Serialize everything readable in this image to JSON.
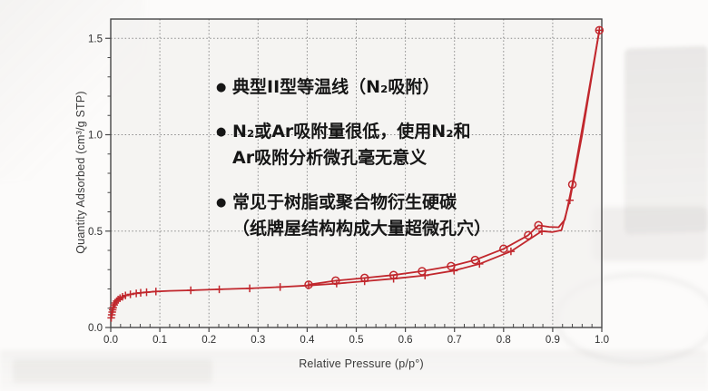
{
  "colors": {
    "accent_red": "#c1272d",
    "grid": "#8b8b8b",
    "axis": "#474747",
    "tick_text": "#2f2f2f",
    "plot_bg": "#f1f0ee"
  },
  "chart": {
    "xlabel": "Relative Pressure (p/p°)",
    "ylabel": "Quantity Adsorbed (cm³/g STP)"
  },
  "chart_data": {
    "type": "line",
    "title": "",
    "xlabel": "Relative Pressure (p/p°)",
    "ylabel": "Quantity Adsorbed (cm³/g STP)",
    "xlim": [
      0,
      1.0
    ],
    "ylim": [
      0,
      1.6
    ],
    "x_major_ticks": [
      0,
      0.1,
      0.2,
      0.3,
      0.4,
      0.5,
      0.6,
      0.7,
      0.8,
      0.9,
      1.0
    ],
    "y_major_ticks": [
      0,
      0.5,
      1.0,
      1.5
    ],
    "x_minor_step": 0.02,
    "y_minor_step": 0.1,
    "grid": "dotted",
    "legend": "none",
    "color": "#c1272d",
    "series": [
      {
        "name": "adsorption",
        "marker": "plus",
        "points": [
          [
            0.001,
            0.05,
            1
          ],
          [
            0.002,
            0.066,
            1
          ],
          [
            0.003,
            0.08,
            1
          ],
          [
            0.004,
            0.092,
            1
          ],
          [
            0.005,
            0.103,
            1
          ],
          [
            0.007,
            0.117,
            1
          ],
          [
            0.009,
            0.127,
            1
          ],
          [
            0.012,
            0.137,
            1
          ],
          [
            0.015,
            0.145,
            1
          ],
          [
            0.019,
            0.152,
            1
          ],
          [
            0.024,
            0.159,
            1
          ],
          [
            0.03,
            0.166,
            1
          ],
          [
            0.04,
            0.172,
            1
          ],
          [
            0.052,
            0.177,
            1
          ],
          [
            0.061,
            0.18,
            1
          ],
          [
            0.073,
            0.183,
            1
          ],
          [
            0.092,
            0.187,
            1
          ],
          [
            0.12,
            0.19,
            0
          ],
          [
            0.163,
            0.193,
            1
          ],
          [
            0.221,
            0.198,
            1
          ],
          [
            0.283,
            0.203,
            1
          ],
          [
            0.345,
            0.21,
            1
          ],
          [
            0.403,
            0.218,
            1
          ],
          [
            0.46,
            0.228,
            1
          ],
          [
            0.517,
            0.24,
            1
          ],
          [
            0.576,
            0.253,
            1
          ],
          [
            0.64,
            0.27,
            1
          ],
          [
            0.699,
            0.295,
            1
          ],
          [
            0.751,
            0.33,
            1
          ],
          [
            0.815,
            0.395,
            1
          ],
          [
            0.878,
            0.5,
            1
          ],
          [
            0.9,
            0.495,
            0
          ],
          [
            0.918,
            0.505,
            0
          ],
          [
            0.935,
            0.66,
            1
          ],
          [
            0.96,
            1.0,
            0
          ],
          [
            0.995,
            1.542,
            1
          ]
        ]
      },
      {
        "name": "desorption",
        "marker": "circle",
        "points": [
          [
            0.403,
            0.222,
            1
          ],
          [
            0.458,
            0.243,
            1
          ],
          [
            0.517,
            0.257,
            1
          ],
          [
            0.576,
            0.272,
            1
          ],
          [
            0.634,
            0.292,
            1
          ],
          [
            0.693,
            0.318,
            1
          ],
          [
            0.742,
            0.35,
            1
          ],
          [
            0.8,
            0.408,
            1
          ],
          [
            0.85,
            0.478,
            1
          ],
          [
            0.871,
            0.53,
            1
          ],
          [
            0.893,
            0.522,
            0
          ],
          [
            0.912,
            0.52,
            0
          ],
          [
            0.925,
            0.56,
            0
          ],
          [
            0.94,
            0.742,
            1
          ],
          [
            0.967,
            1.13,
            0
          ],
          [
            0.995,
            1.542,
            1
          ]
        ]
      }
    ]
  },
  "annotations": {
    "bullet_glyph": "●",
    "bullets": [
      {
        "lines": [
          "典型II型等温线（N₂吸附）"
        ]
      },
      {
        "lines": [
          "N₂或Ar吸附量很低，使用N₂和",
          "Ar吸附分析微孔毫无意义"
        ]
      },
      {
        "lines": [
          "常见于树脂或聚合物衍生硬碳",
          "（纸牌屋结构构成大量超微孔穴）"
        ]
      }
    ]
  }
}
